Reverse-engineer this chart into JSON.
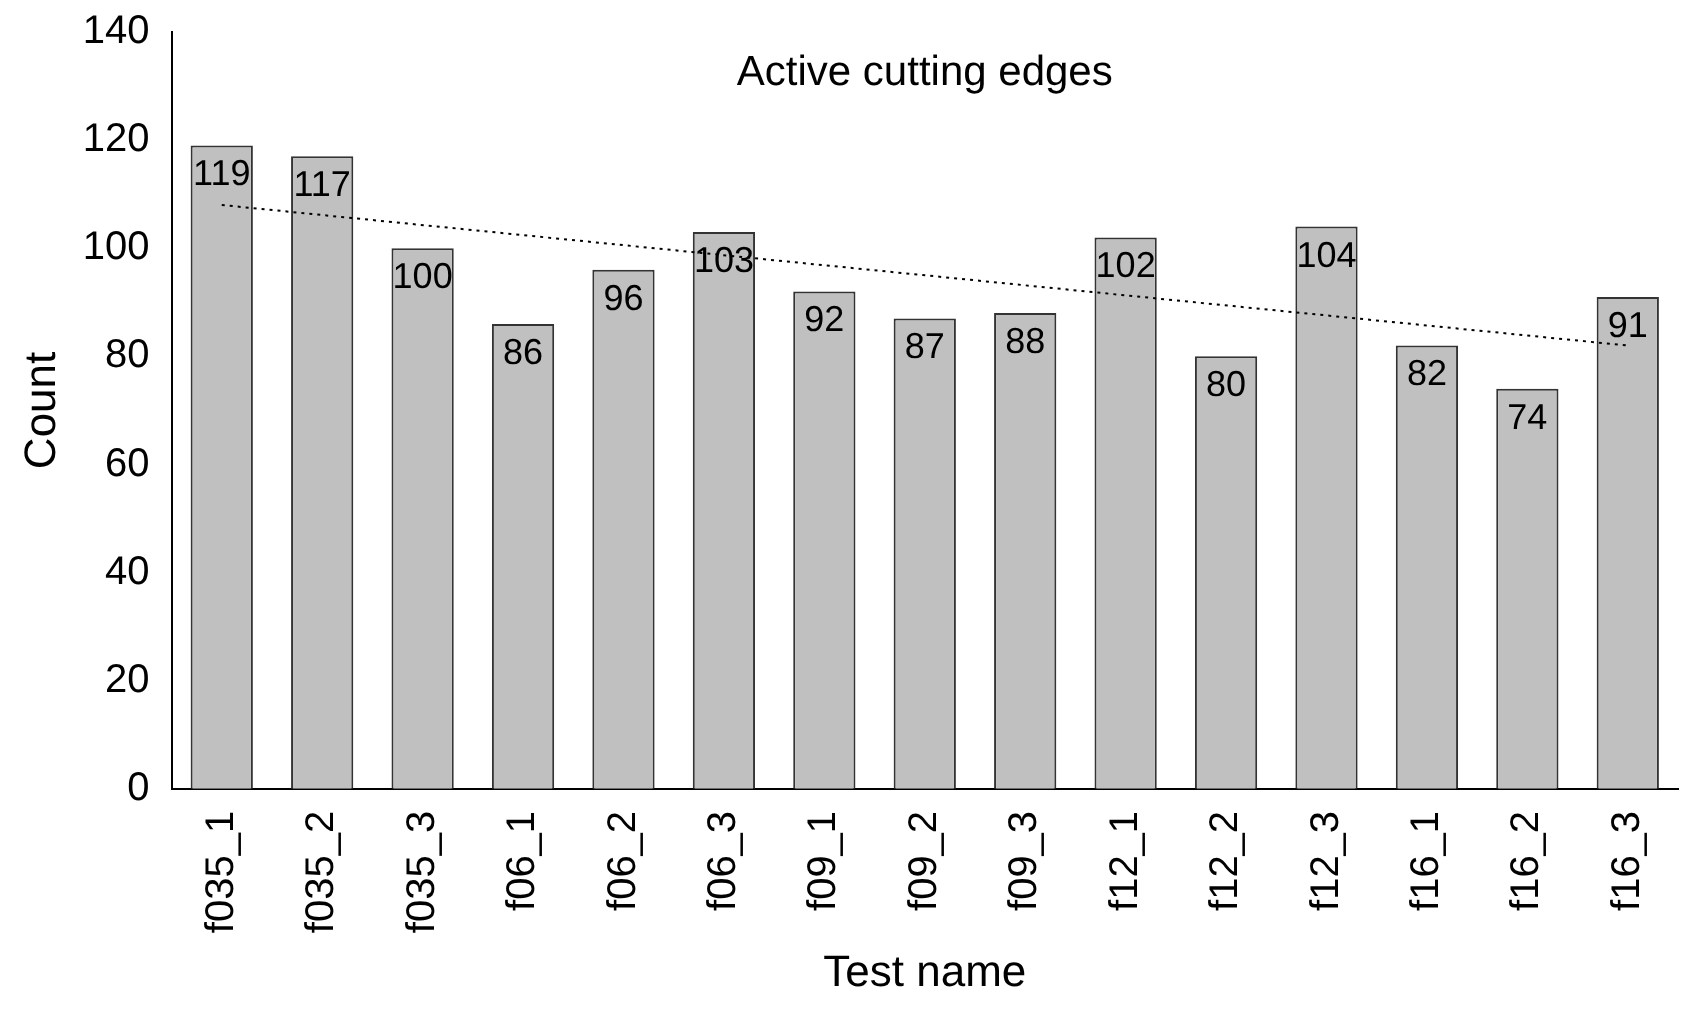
{
  "chart_data": {
    "type": "bar",
    "title": "Active cutting edges",
    "xlabel": "Test name",
    "ylabel": "Count",
    "categories": [
      "f035_1",
      "f035_2",
      "f035_3",
      "f06_1",
      "f06_2",
      "f06_3",
      "f09_1",
      "f09_2",
      "f09_3",
      "f12_1",
      "f12_2",
      "f12_3",
      "f16_1",
      "f16_2",
      "f16_3"
    ],
    "series": [
      {
        "color": "#c0c0c0",
        "values": [
          119,
          117,
          100,
          86,
          96,
          103,
          92,
          87,
          88,
          102,
          80,
          104,
          82,
          74,
          91
        ],
        "value_labels": [
          "119",
          "117",
          "100",
          "86",
          "96",
          "103",
          "92",
          "87",
          "88",
          "102",
          "80",
          "104",
          "82",
          "74",
          "91"
        ]
      },
      {
        "type": "line",
        "color": "#000000",
        "x": [
          "f035_1",
          "f16_3"
        ],
        "values": [
          108,
          82
        ],
        "line_style": "dotted",
        "marker": "none"
      }
    ],
    "ylim": [
      0,
      140
    ],
    "yticks": [
      0,
      20,
      40,
      60,
      80,
      100,
      120,
      140
    ],
    "grid": false,
    "legend": false
  }
}
